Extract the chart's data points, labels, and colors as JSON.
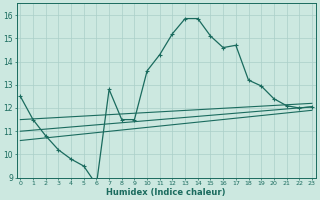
{
  "xlabel": "Humidex (Indice chaleur)",
  "bg_color": "#cce8e0",
  "line_color": "#1a6b5e",
  "grid_color": "#aacfc8",
  "xlim": [
    0,
    23
  ],
  "ylim": [
    9,
    16.5
  ],
  "xticks": [
    0,
    1,
    2,
    3,
    4,
    5,
    6,
    7,
    8,
    9,
    10,
    11,
    12,
    13,
    14,
    15,
    16,
    17,
    18,
    19,
    20,
    21,
    22,
    23
  ],
  "yticks": [
    9,
    10,
    11,
    12,
    13,
    14,
    15,
    16
  ],
  "curve1_x": [
    0,
    1,
    2,
    3,
    4,
    5,
    6,
    7,
    8,
    9,
    10,
    11,
    12,
    13,
    14,
    15,
    16,
    17,
    18,
    19,
    20,
    21,
    22,
    23
  ],
  "curve1_y": [
    12.5,
    11.5,
    10.8,
    10.2,
    9.8,
    9.5,
    8.7,
    12.8,
    11.5,
    11.5,
    13.6,
    14.3,
    15.2,
    15.85,
    15.85,
    15.1,
    14.6,
    14.7,
    13.2,
    12.95,
    12.4,
    12.1,
    12.0,
    12.05
  ],
  "line2_x": [
    0,
    23
  ],
  "line2_y": [
    11.5,
    12.2
  ],
  "line3_x": [
    0,
    23
  ],
  "line3_y": [
    11.0,
    12.05
  ],
  "line4_x": [
    0,
    23
  ],
  "line4_y": [
    10.6,
    11.9
  ]
}
